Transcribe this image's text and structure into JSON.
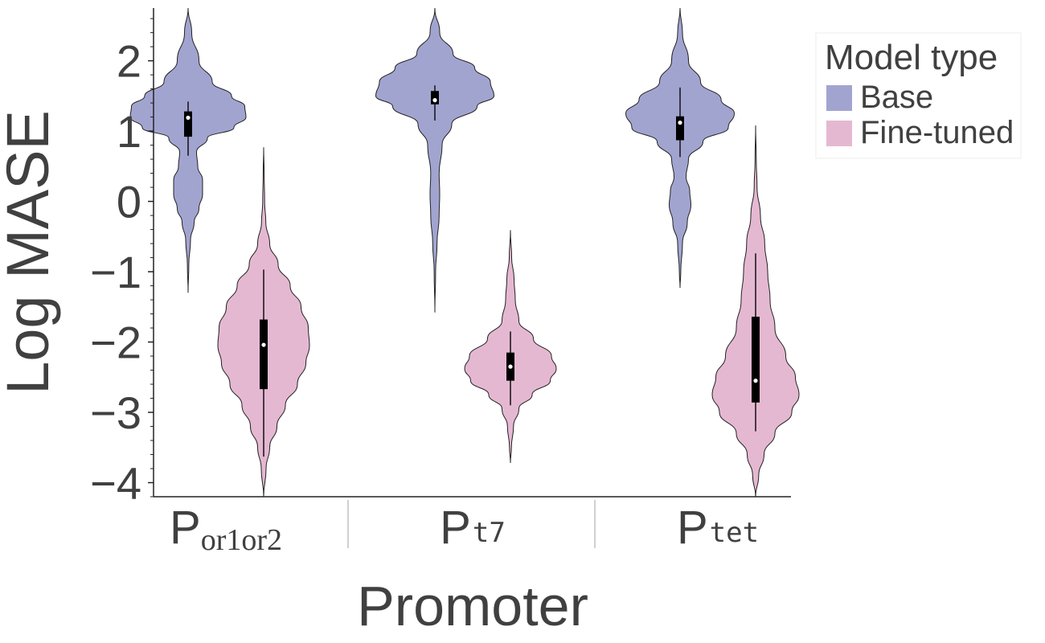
{
  "chart_data": {
    "type": "violin",
    "ylabel": "Log MASE",
    "xlabel": "Promoter",
    "ylim": [
      -4.2,
      2.75
    ],
    "yticks": [
      2,
      1,
      0,
      -1,
      -2,
      -3,
      -4
    ],
    "ytick_labels": [
      "2",
      "1",
      "0",
      "−1",
      "−2",
      "−3",
      "−4"
    ],
    "categories": [
      {
        "main": "P",
        "sub": "or1or2",
        "sub_style": "serif"
      },
      {
        "main": "P",
        "sub": "t7",
        "sub_style": "mono"
      },
      {
        "main": "P",
        "sub": "tet",
        "sub_style": "mono"
      }
    ],
    "legend": {
      "title": "Model type",
      "placement": "top-right outside",
      "entries": [
        {
          "label": "Base",
          "color": "#a2a4d0"
        },
        {
          "label": "Fine-tuned",
          "color": "#e5b8d2"
        }
      ]
    },
    "series": [
      {
        "name": "Base",
        "color": "#a2a4d0",
        "violins": [
          {
            "category": 0,
            "min": -1.3,
            "max": 2.75,
            "q1": 0.92,
            "median": 1.19,
            "q3": 1.28,
            "whisker_low": 0.65,
            "whisker_high": 1.42,
            "profile": [
              [
                2.75,
                0
              ],
              [
                2.4,
                0.03
              ],
              [
                2.0,
                0.09
              ],
              [
                1.7,
                0.2
              ],
              [
                1.5,
                0.36
              ],
              [
                1.35,
                0.47
              ],
              [
                1.2,
                0.48
              ],
              [
                1.05,
                0.38
              ],
              [
                0.9,
                0.16
              ],
              [
                0.7,
                0.07
              ],
              [
                0.5,
                0.08
              ],
              [
                0.3,
                0.12
              ],
              [
                0.1,
                0.12
              ],
              [
                -0.1,
                0.09
              ],
              [
                -0.3,
                0.05
              ],
              [
                -0.55,
                0.02
              ],
              [
                -0.9,
                0.006
              ],
              [
                -1.3,
                0
              ]
            ]
          },
          {
            "category": 1,
            "min": -1.58,
            "max": 2.75,
            "q1": 1.38,
            "median": 1.44,
            "q3": 1.57,
            "whisker_low": 1.15,
            "whisker_high": 1.65,
            "profile": [
              [
                2.75,
                0
              ],
              [
                2.4,
                0.04
              ],
              [
                2.1,
                0.15
              ],
              [
                1.9,
                0.33
              ],
              [
                1.7,
                0.46
              ],
              [
                1.5,
                0.49
              ],
              [
                1.35,
                0.35
              ],
              [
                1.1,
                0.14
              ],
              [
                0.8,
                0.06
              ],
              [
                0.4,
                0.035
              ],
              [
                0.1,
                0.04
              ],
              [
                -0.2,
                0.035
              ],
              [
                -0.6,
                0.018
              ],
              [
                -1.0,
                0.006
              ],
              [
                -1.58,
                0
              ]
            ]
          },
          {
            "category": 2,
            "min": -1.23,
            "max": 2.75,
            "q1": 0.87,
            "median": 1.12,
            "q3": 1.21,
            "whisker_low": 0.63,
            "whisker_high": 1.62,
            "profile": [
              [
                2.75,
                0
              ],
              [
                2.4,
                0.02
              ],
              [
                2.0,
                0.07
              ],
              [
                1.7,
                0.17
              ],
              [
                1.45,
                0.34
              ],
              [
                1.25,
                0.45
              ],
              [
                1.05,
                0.4
              ],
              [
                0.85,
                0.19
              ],
              [
                0.6,
                0.07
              ],
              [
                0.35,
                0.05
              ],
              [
                0.15,
                0.08
              ],
              [
                -0.05,
                0.09
              ],
              [
                -0.3,
                0.06
              ],
              [
                -0.6,
                0.02
              ],
              [
                -1.0,
                0.006
              ],
              [
                -1.23,
                0
              ]
            ]
          }
        ]
      },
      {
        "name": "Fine-tuned",
        "color": "#e5b8d2",
        "violins": [
          {
            "category": 0,
            "min": -4.2,
            "max": 0.77,
            "q1": -2.67,
            "median": -2.04,
            "q3": -1.68,
            "whisker_low": -3.63,
            "whisker_high": -0.97,
            "profile": [
              [
                0.77,
                0
              ],
              [
                0.4,
                0.004
              ],
              [
                0.0,
                0.008
              ],
              [
                -0.3,
                0.018
              ],
              [
                -0.6,
                0.05
              ],
              [
                -0.9,
                0.12
              ],
              [
                -1.2,
                0.22
              ],
              [
                -1.5,
                0.31
              ],
              [
                -1.8,
                0.37
              ],
              [
                -2.05,
                0.38
              ],
              [
                -2.3,
                0.35
              ],
              [
                -2.6,
                0.28
              ],
              [
                -2.9,
                0.18
              ],
              [
                -3.2,
                0.11
              ],
              [
                -3.5,
                0.05
              ],
              [
                -3.8,
                0.02
              ],
              [
                -4.2,
                0
              ]
            ]
          },
          {
            "category": 1,
            "min": -3.72,
            "max": -0.41,
            "q1": -2.55,
            "median": -2.35,
            "q3": -2.15,
            "whisker_low": -2.9,
            "whisker_high": -1.85,
            "profile": [
              [
                -0.41,
                0
              ],
              [
                -0.8,
                0.01
              ],
              [
                -1.1,
                0.03
              ],
              [
                -1.4,
                0.04
              ],
              [
                -1.7,
                0.07
              ],
              [
                -1.95,
                0.19
              ],
              [
                -2.2,
                0.34
              ],
              [
                -2.38,
                0.38
              ],
              [
                -2.55,
                0.33
              ],
              [
                -2.75,
                0.18
              ],
              [
                -2.95,
                0.07
              ],
              [
                -3.2,
                0.025
              ],
              [
                -3.5,
                0.008
              ],
              [
                -3.72,
                0
              ]
            ]
          },
          {
            "category": 2,
            "min": -4.2,
            "max": 1.08,
            "q1": -2.86,
            "median": -2.55,
            "q3": -1.64,
            "whisker_low": -3.27,
            "whisker_high": -0.74,
            "profile": [
              [
                1.08,
                0
              ],
              [
                0.6,
                0.005
              ],
              [
                0.2,
                0.012
              ],
              [
                -0.2,
                0.04
              ],
              [
                -0.6,
                0.075
              ],
              [
                -1.0,
                0.1
              ],
              [
                -1.4,
                0.12
              ],
              [
                -1.8,
                0.16
              ],
              [
                -2.2,
                0.25
              ],
              [
                -2.5,
                0.33
              ],
              [
                -2.75,
                0.36
              ],
              [
                -3.0,
                0.3
              ],
              [
                -3.3,
                0.16
              ],
              [
                -3.6,
                0.07
              ],
              [
                -3.9,
                0.025
              ],
              [
                -4.2,
                0
              ]
            ]
          }
        ]
      }
    ]
  }
}
